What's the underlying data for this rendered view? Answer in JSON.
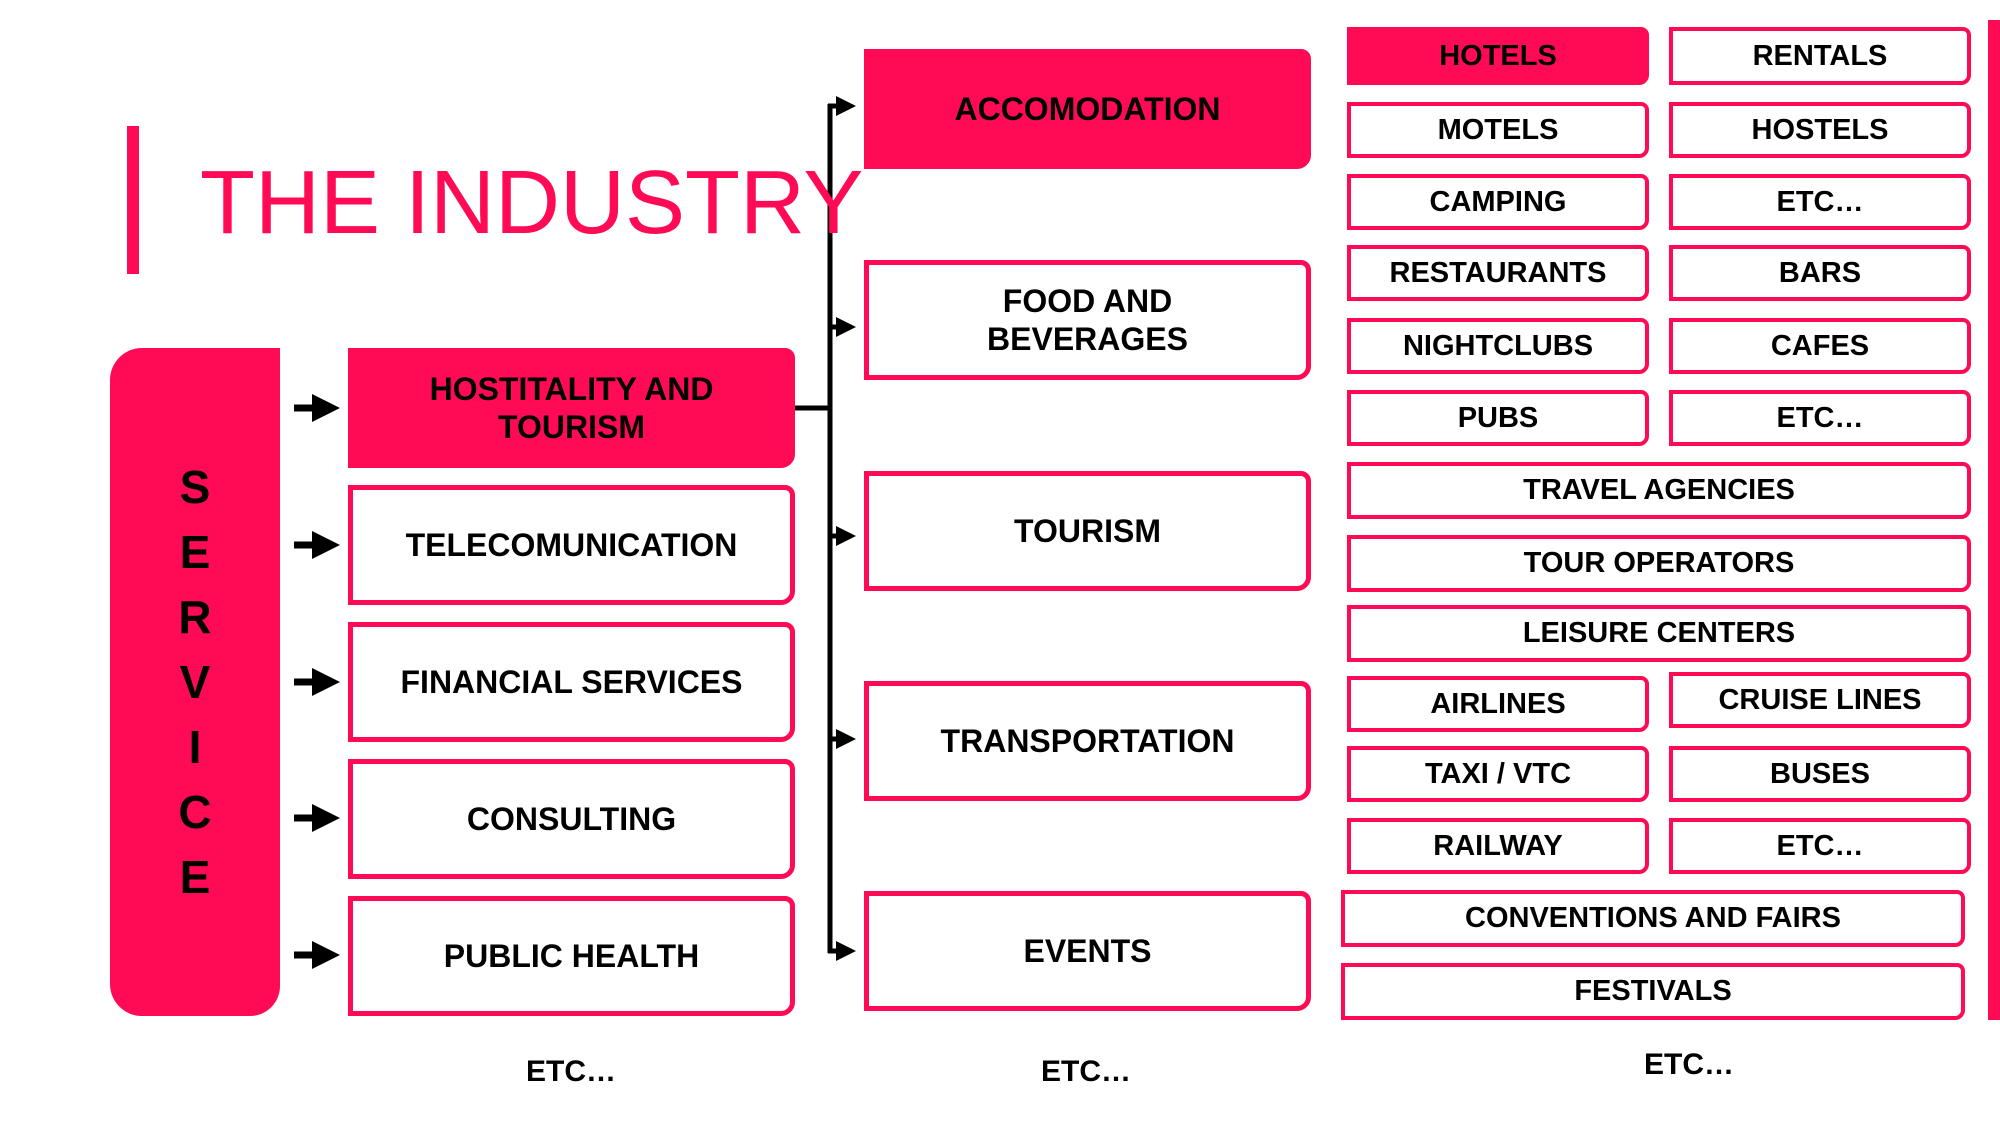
{
  "title": "THE INDUSTRY",
  "service_letters": [
    "S",
    "E",
    "R",
    "V",
    "I",
    "C",
    "E"
  ],
  "sectors": [
    "HOSTITALITY AND TOURISM",
    "TELECOMUNICATION",
    "FINANCIAL SERVICES",
    "CONSULTING",
    "PUBLIC HEALTH"
  ],
  "categories": [
    "ACCOMODATION",
    "FOOD AND BEVERAGES",
    "TOURISM",
    "TRANSPORTATION",
    "EVENTS"
  ],
  "items": {
    "hotels": "HOTELS",
    "rentals": "RENTALS",
    "motels": "MOTELS",
    "hostels": "HOSTELS",
    "camping": "CAMPING",
    "accom_etc": "ETC…",
    "restaurants": "RESTAURANTS",
    "bars": "BARS",
    "nightclubs": "NIGHTCLUBS",
    "cafes": "CAFES",
    "pubs": "PUBS",
    "food_etc": "ETC…",
    "travel_agencies": "TRAVEL AGENCIES",
    "tour_operators": "TOUR OPERATORS",
    "leisure_centers": "LEISURE CENTERS",
    "airlines": "AIRLINES",
    "cruise_lines": "CRUISE LINES",
    "taxi": "TAXI / VTC",
    "buses": "BUSES",
    "railway": "RAILWAY",
    "transport_etc": "ETC…",
    "conventions": "CONVENTIONS AND FAIRS",
    "festivals": "FESTIVALS"
  },
  "etc_labels": [
    "ETC…",
    "ETC…",
    "ETC…"
  ],
  "colors": {
    "accent": "#ff0a54",
    "text": "#000000"
  }
}
